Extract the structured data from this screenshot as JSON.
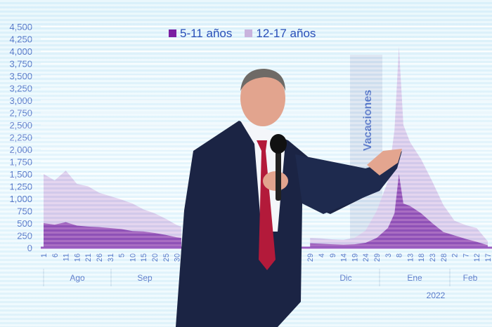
{
  "chart_data": {
    "type": "area",
    "stacked": true,
    "title": "",
    "legend": [
      {
        "name": "5-11 años",
        "color": "#7b1fa2"
      },
      {
        "name": "12-17 años",
        "color": "#d6bfe6"
      }
    ],
    "legend_placement": "top-center",
    "ylim": [
      0,
      4500
    ],
    "y_ticks": [
      "0",
      "250",
      "500",
      "750",
      "1,000",
      "1,250",
      "1,500",
      "1,750",
      "2,000",
      "2,250",
      "2,500",
      "2,750",
      "3,000",
      "3,250",
      "3,500",
      "3,750",
      "4,000",
      "4,250",
      "4,500"
    ],
    "x_ticks_left": [
      "1",
      "6",
      "11",
      "16",
      "21",
      "26",
      "31",
      "5",
      "10",
      "15",
      "20",
      "25",
      "30"
    ],
    "x_ticks_right": [
      "29",
      "4",
      "9",
      "14",
      "19",
      "24",
      "29",
      "3",
      "8",
      "13",
      "18",
      "23",
      "28",
      "2",
      "7",
      "12",
      "17"
    ],
    "months": [
      "Ago",
      "Sep",
      "Dic",
      "Ene",
      "Feb"
    ],
    "year_label": "2022",
    "annotation": "Vacaciones",
    "series": [
      {
        "name": "5-11 años",
        "points": [
          [
            "2021-08-01",
            500
          ],
          [
            "2021-08-06",
            470
          ],
          [
            "2021-08-11",
            520
          ],
          [
            "2021-08-16",
            450
          ],
          [
            "2021-08-21",
            430
          ],
          [
            "2021-08-26",
            420
          ],
          [
            "2021-08-31",
            400
          ],
          [
            "2021-09-05",
            380
          ],
          [
            "2021-09-10",
            340
          ],
          [
            "2021-09-15",
            330
          ],
          [
            "2021-09-20",
            300
          ],
          [
            "2021-09-25",
            260
          ],
          [
            "2021-09-30",
            210
          ],
          [
            "2021-10-02",
            200
          ],
          [
            "2021-11-29",
            90
          ],
          [
            "2021-12-04",
            80
          ],
          [
            "2021-12-09",
            70
          ],
          [
            "2021-12-14",
            60
          ],
          [
            "2021-12-19",
            70
          ],
          [
            "2021-12-24",
            100
          ],
          [
            "2021-12-29",
            200
          ],
          [
            "2022-01-03",
            400
          ],
          [
            "2022-01-06",
            700
          ],
          [
            "2022-01-08",
            1500
          ],
          [
            "2022-01-10",
            900
          ],
          [
            "2022-01-13",
            850
          ],
          [
            "2022-01-18",
            700
          ],
          [
            "2022-01-23",
            500
          ],
          [
            "2022-01-28",
            320
          ],
          [
            "2022-02-02",
            250
          ],
          [
            "2022-02-07",
            180
          ],
          [
            "2022-02-12",
            120
          ],
          [
            "2022-02-17",
            50
          ]
        ]
      },
      {
        "name": "12-17 años",
        "points": [
          [
            "2021-08-01",
            1000
          ],
          [
            "2021-08-06",
            900
          ],
          [
            "2021-08-11",
            1050
          ],
          [
            "2021-08-16",
            850
          ],
          [
            "2021-08-21",
            820
          ],
          [
            "2021-08-26",
            700
          ],
          [
            "2021-08-31",
            650
          ],
          [
            "2021-09-05",
            600
          ],
          [
            "2021-09-10",
            560
          ],
          [
            "2021-09-15",
            450
          ],
          [
            "2021-09-20",
            400
          ],
          [
            "2021-09-25",
            330
          ],
          [
            "2021-09-30",
            250
          ],
          [
            "2021-10-02",
            230
          ],
          [
            "2021-11-29",
            110
          ],
          [
            "2021-12-04",
            110
          ],
          [
            "2021-12-09",
            100
          ],
          [
            "2021-12-14",
            100
          ],
          [
            "2021-12-19",
            130
          ],
          [
            "2021-12-24",
            250
          ],
          [
            "2021-12-29",
            550
          ],
          [
            "2022-01-03",
            950
          ],
          [
            "2022-01-06",
            1700
          ],
          [
            "2022-01-08",
            2600
          ],
          [
            "2022-01-10",
            1600
          ],
          [
            "2022-01-13",
            1300
          ],
          [
            "2022-01-18",
            1100
          ],
          [
            "2022-01-23",
            850
          ],
          [
            "2022-01-28",
            550
          ],
          [
            "2022-02-02",
            300
          ],
          [
            "2022-02-07",
            280
          ],
          [
            "2022-02-12",
            280
          ],
          [
            "2022-02-17",
            80
          ]
        ]
      }
    ]
  }
}
